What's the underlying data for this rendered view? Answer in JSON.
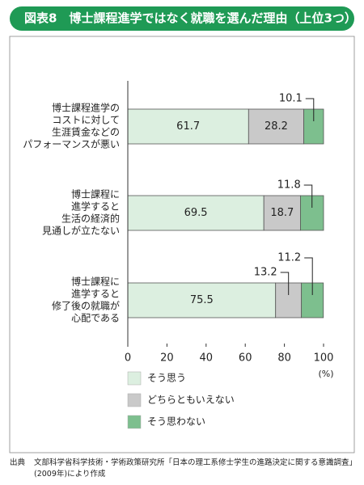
{
  "chart_data": {
    "type": "stacked-barh",
    "title": "図表8　博士課程進学ではなく就職を選んだ理由（上位3つ）",
    "categories": [
      [
        "博士課程進学の",
        "コストに対して",
        "生涯賃金などの",
        "パフォーマンスが悪い"
      ],
      [
        "博士課程に",
        "進学すると",
        "生活の経済的",
        "見通しが立たない"
      ],
      [
        "博士課程に",
        "進学すると",
        "修了後の就職が",
        "心配である"
      ]
    ],
    "series": [
      {
        "name": "そう思う",
        "color": "#dcefe0",
        "values": [
          61.7,
          69.5,
          75.5
        ]
      },
      {
        "name": "どちらともいえない",
        "color": "#c9c9c9",
        "values": [
          28.2,
          18.7,
          13.2
        ]
      },
      {
        "name": "そう思わない",
        "color": "#7dbf8e",
        "values": [
          10.1,
          11.8,
          11.2
        ]
      }
    ],
    "xlim": [
      0,
      100
    ],
    "xticks": [
      0,
      20,
      40,
      60,
      80,
      100
    ],
    "x_unit": "(%)",
    "source_label": "出典",
    "source": "文部科学省科学技術・学術政策研究所「日本の理工系修士学生の進路決定に関する意識調査」(2009年)により作成"
  }
}
